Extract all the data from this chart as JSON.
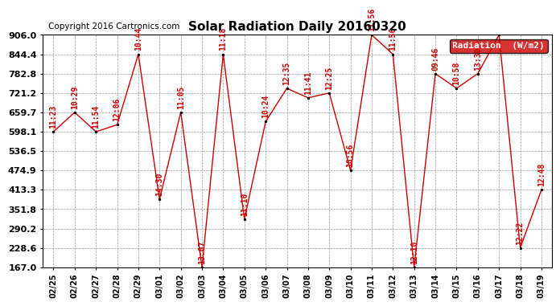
{
  "title": "Solar Radiation Daily 20160320",
  "copyright": "Copyright 2016 Cartronics.com",
  "legend_label": "Radiation  (W/m2)",
  "ylim": [
    167.0,
    906.0
  ],
  "yticks": [
    167.0,
    228.6,
    290.2,
    351.8,
    413.3,
    474.9,
    536.5,
    598.1,
    659.7,
    721.2,
    782.8,
    844.4,
    906.0
  ],
  "dates": [
    "02/25",
    "02/26",
    "02/27",
    "02/28",
    "02/29",
    "03/01",
    "03/02",
    "03/03",
    "03/04",
    "03/05",
    "03/06",
    "03/07",
    "03/08",
    "03/09",
    "03/10",
    "03/11",
    "03/12",
    "03/13",
    "03/14",
    "03/15",
    "03/16",
    "03/17",
    "03/18",
    "03/19"
  ],
  "values": [
    598.1,
    659.7,
    598.1,
    620.0,
    844.4,
    383.0,
    659.7,
    167.0,
    844.4,
    320.0,
    630.0,
    736.0,
    706.0,
    721.2,
    474.9,
    906.0,
    844.4,
    167.0,
    782.8,
    736.0,
    782.8,
    906.0,
    228.6,
    413.3
  ],
  "labels": [
    "11:23",
    "10:29",
    "11:54",
    "12:06",
    "10:44",
    "14:30",
    "11:05",
    "13:07",
    "11:18",
    "11:10",
    "10:24",
    "12:35",
    "11:41",
    "12:25",
    "10:56",
    "11:56",
    "11:56",
    "12:10",
    "09:46",
    "10:58",
    "13:30",
    "",
    "12:22",
    "12:48"
  ],
  "line_color": "#cc0000",
  "marker_color": "#000000",
  "bg_color": "#ffffff",
  "grid_color": "#999999",
  "legend_bg": "#cc0000",
  "legend_text_color": "#ffffff",
  "title_fontsize": 11,
  "label_fontsize": 7,
  "ytick_fontsize": 8,
  "xtick_fontsize": 7,
  "copyright_fontsize": 7.5
}
